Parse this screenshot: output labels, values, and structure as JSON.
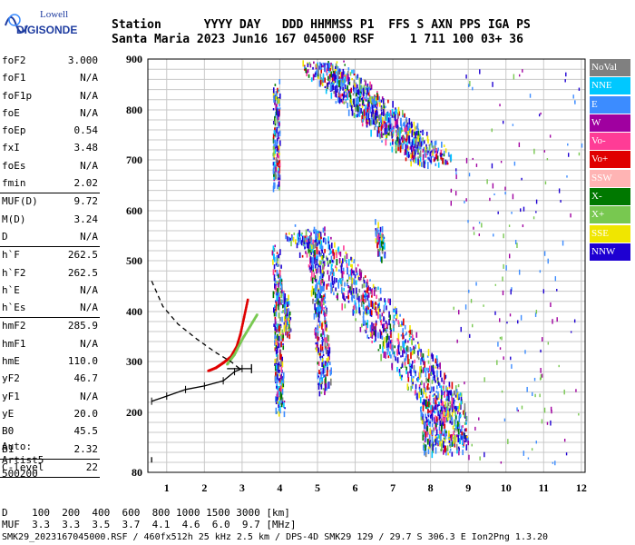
{
  "logo": {
    "line1": "Lowell",
    "line2": "DIGISONDE"
  },
  "header": {
    "row1": "Station      YYYY DAY   DDD HHMMSS P1  FFS S AXN PPS IGA PS",
    "row2": "Santa Maria 2023 Jun16 167 045000 RSF     1 711 100 03+ 36"
  },
  "params": [
    {
      "k": "foF2",
      "v": "3.000"
    },
    {
      "k": "foF1",
      "v": "N/A"
    },
    {
      "k": "foF1p",
      "v": "N/A"
    },
    {
      "k": "foE",
      "v": "N/A"
    },
    {
      "k": "foEp",
      "v": "0.54"
    },
    {
      "k": "fxI",
      "v": "3.48"
    },
    {
      "k": "foEs",
      "v": "N/A"
    },
    {
      "k": "fmin",
      "v": "2.02"
    },
    {
      "sep": true
    },
    {
      "k": "MUF(D)",
      "v": "9.72"
    },
    {
      "k": "M(D)",
      "v": "3.24"
    },
    {
      "k": "D",
      "v": "N/A"
    },
    {
      "sep": true
    },
    {
      "k": "h`F",
      "v": "262.5"
    },
    {
      "k": "h`F2",
      "v": "262.5"
    },
    {
      "k": "h`E",
      "v": "N/A"
    },
    {
      "k": "h`Es",
      "v": "N/A"
    },
    {
      "sep": true
    },
    {
      "k": "hmF2",
      "v": "285.9"
    },
    {
      "k": "hmF1",
      "v": "N/A"
    },
    {
      "k": "hmE",
      "v": "110.0"
    },
    {
      "k": "yF2",
      "v": "46.7"
    },
    {
      "k": "yF1",
      "v": "N/A"
    },
    {
      "k": "yE",
      "v": "20.0"
    },
    {
      "k": "B0",
      "v": "45.5"
    },
    {
      "k": "B1",
      "v": "2.32"
    },
    {
      "sep": true
    },
    {
      "k": "C-level",
      "v": "22"
    },
    {
      "sep": true
    }
  ],
  "autoscaling": [
    "Auto:",
    "Artist5",
    "500200"
  ],
  "legend": [
    {
      "label": "NoVal",
      "color": "#808080"
    },
    {
      "label": "NNE",
      "color": "#00c8ff"
    },
    {
      "label": "E",
      "color": "#3c8cff"
    },
    {
      "label": "W",
      "color": "#a000a0"
    },
    {
      "label": "Vo-",
      "color": "#ff3c96"
    },
    {
      "label": "Vo+",
      "color": "#e00000"
    },
    {
      "label": "SSW",
      "color": "#ffb4b4"
    },
    {
      "label": "X-",
      "color": "#007800"
    },
    {
      "label": "X+",
      "color": "#78c850"
    },
    {
      "label": "SSE",
      "color": "#f0e600"
    },
    {
      "label": "NNW",
      "color": "#1e00d2"
    }
  ],
  "muf_table": {
    "row1": "D    100  200  400  600  800 1000 1500 3000 [km]",
    "row2": "MUF  3.3  3.3  3.5  3.7  4.1  4.6  6.0  9.7 [MHz]"
  },
  "footer": "SMK29_2023167045000.RSF / 460fx512h 25 kHz 2.5 km / DPS-4D SMK29 129 / 29.7 S 306.3 E Ion2Png 1.3.20",
  "chart_data": {
    "type": "scatter",
    "title": "",
    "xlabel": "",
    "ylabel": "",
    "xlim": [
      0.5,
      12.1
    ],
    "ylim": [
      80,
      900
    ],
    "x_ticks": [
      "1",
      "2",
      "3",
      "4",
      "5",
      "6",
      "7",
      "8",
      "9",
      "10",
      "11",
      "12"
    ],
    "y_ticks": [
      "80",
      "200",
      "300",
      "400",
      "500",
      "600",
      "700",
      "800",
      "900"
    ],
    "grid": true,
    "legend_position": "right",
    "series": [
      {
        "name": "Vo-",
        "points": [
          [
            2.1,
            282
          ],
          [
            2.3,
            288
          ],
          [
            2.5,
            298
          ],
          [
            2.7,
            310
          ],
          [
            2.85,
            330
          ],
          [
            2.95,
            355
          ],
          [
            3.05,
            390
          ],
          [
            3.15,
            425
          ]
        ]
      },
      {
        "name": "X+",
        "points": [
          [
            2.6,
            295
          ],
          [
            2.8,
            315
          ],
          [
            3.0,
            345
          ],
          [
            3.2,
            370
          ],
          [
            3.4,
            395
          ]
        ]
      }
    ],
    "profile_dashed": [
      [
        0.6,
        460
      ],
      [
        0.9,
        410
      ],
      [
        1.3,
        375
      ],
      [
        1.8,
        345
      ],
      [
        2.3,
        318
      ],
      [
        2.7,
        300
      ],
      [
        2.95,
        285
      ]
    ],
    "profile_solid": [
      [
        0.6,
        222
      ],
      [
        1.0,
        232
      ],
      [
        1.5,
        245
      ],
      [
        2.0,
        252
      ],
      [
        2.5,
        262
      ],
      [
        2.8,
        280
      ],
      [
        3.0,
        286
      ]
    ]
  }
}
